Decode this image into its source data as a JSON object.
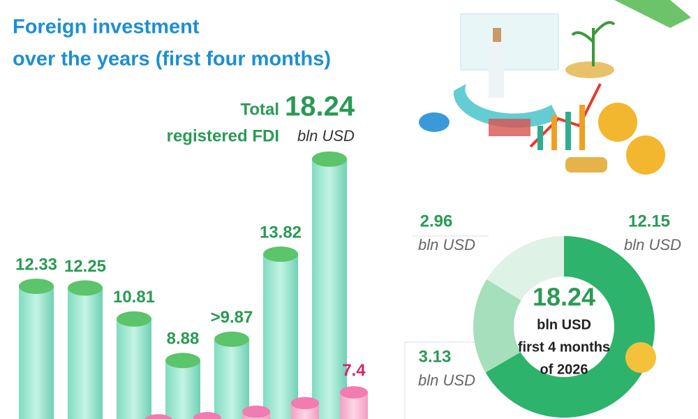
{
  "chart_data": [
    {
      "type": "bar",
      "title": [
        "Foreign investment",
        "over the years (first four months)"
      ],
      "annotation": {
        "lines": [
          "Total",
          "registered FDI"
        ],
        "unit": "bln USD"
      },
      "categories": [
        null,
        null,
        null,
        null,
        null,
        null,
        null
      ],
      "series": [
        {
          "name": null,
          "color": "#8fe3c9",
          "cap_color": "#5cc46a",
          "values": [
            12.33,
            12.25,
            10.81,
            8.88,
            9.87,
            13.82,
            18.24
          ],
          "value_labels": [
            "12.33",
            "12.25",
            "10.81",
            "8.88",
            ">9.87",
            "13.82",
            "18.24"
          ]
        },
        {
          "name": null,
          "color": "#f8b3cf",
          "cap_color": "#f27bb0",
          "values": [
            null,
            null,
            6.1,
            6.2,
            6.5,
            6.9,
            7.4
          ],
          "value_labels": [
            null,
            null,
            null,
            null,
            null,
            null,
            "7.4"
          ]
        }
      ],
      "ylim": [
        6,
        19.5
      ]
    },
    {
      "type": "donut",
      "values": [
        12.15,
        3.13,
        2.96
      ],
      "colors": [
        "#2db36b",
        "#a5dfbb",
        "#def3e6"
      ],
      "unit": "bln USD",
      "total": 18.24,
      "center_lines": [
        "bln USD",
        "first 4 months",
        "of 2026"
      ]
    }
  ]
}
